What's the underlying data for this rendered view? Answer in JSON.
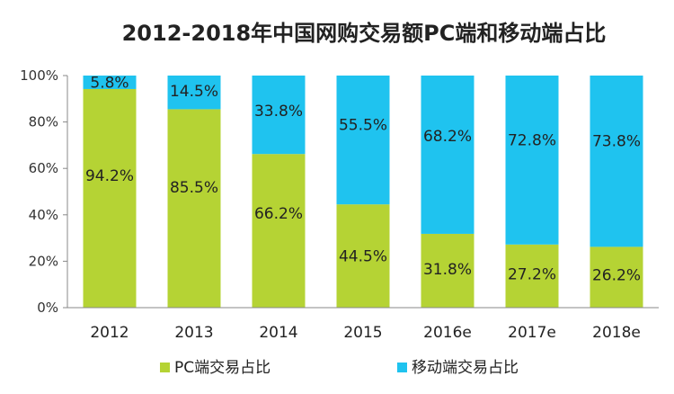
{
  "chart_data": {
    "type": "bar",
    "stacked": true,
    "title": "2012-2018年中国网购交易额PC端和移动端占比",
    "categories": [
      "2012",
      "2013",
      "2014",
      "2015",
      "2016e",
      "2017e",
      "2018e"
    ],
    "series": [
      {
        "name": "PC端交易占比",
        "color": "#b5d334",
        "values": [
          94.2,
          85.5,
          66.2,
          44.5,
          31.8,
          27.2,
          26.2
        ],
        "labels": [
          "94.2%",
          "85.5%",
          "66.2%",
          "44.5%",
          "31.8%",
          "27.2%",
          "26.2%"
        ]
      },
      {
        "name": "移动端交易占比",
        "color": "#1fc3ef",
        "values": [
          5.8,
          14.5,
          33.8,
          55.5,
          68.2,
          72.8,
          73.8
        ],
        "labels": [
          "5.8%",
          "14.5%",
          "33.8%",
          "55.5%",
          "68.2%",
          "72.8%",
          "73.8%"
        ]
      }
    ],
    "ylim": [
      0,
      100
    ],
    "yticks": [
      "0%",
      "20%",
      "40%",
      "60%",
      "80%",
      "100%"
    ],
    "grid": false,
    "legend_position": "bottom"
  }
}
